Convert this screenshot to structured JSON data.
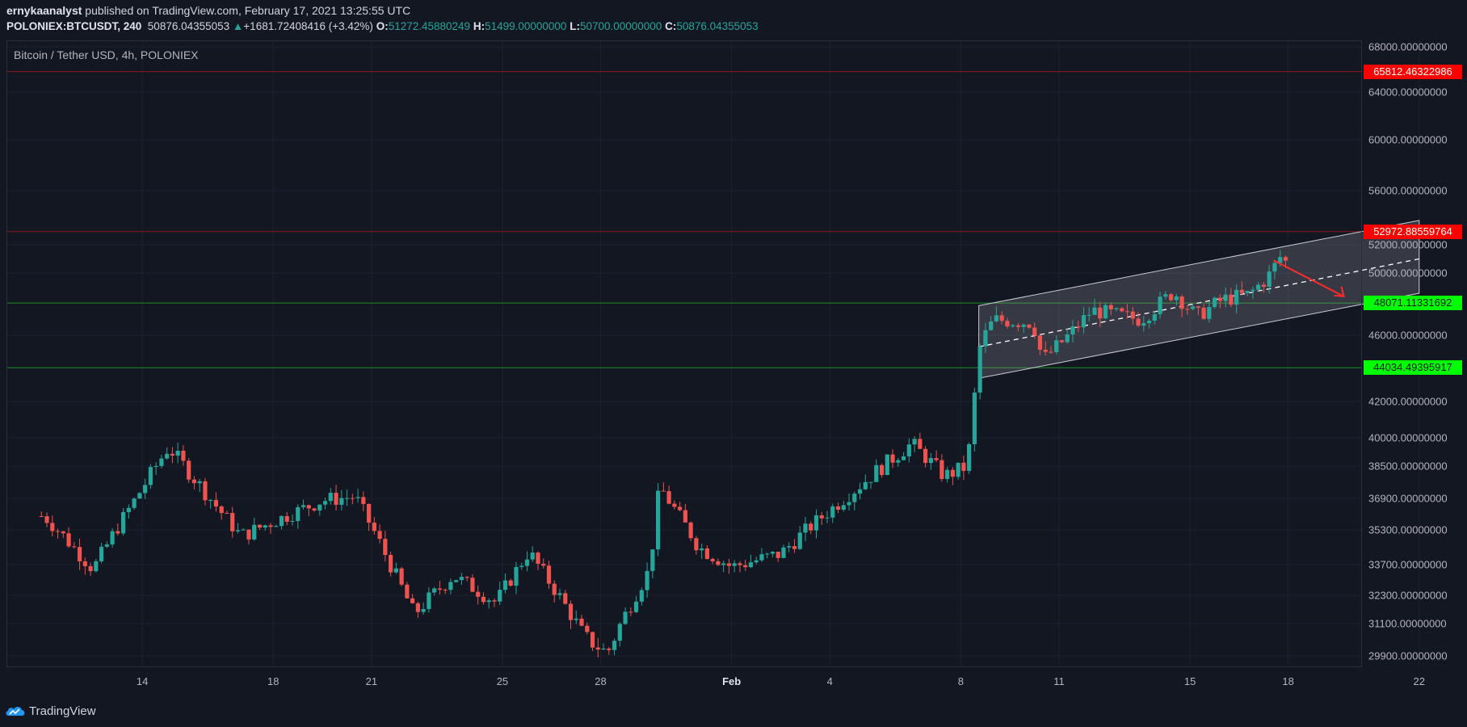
{
  "header": {
    "author": "ernykaanalyst",
    "published_text": "published on TradingView.com, February 17, 2021 13:25:55 UTC",
    "symbol": "POLONIEX:BTCUSDT, 240",
    "last": "50876.04355053",
    "change": "+1681.72408416 (+3.42%)",
    "o_label": "O:",
    "o_value": "51272.45880249",
    "h_label": "H:",
    "h_value": "51499.00000000",
    "l_label": "L:",
    "l_value": "50700.00000000",
    "c_label": "C:",
    "c_value": "50876.04355053",
    "up_arrow": "▲"
  },
  "chart_title": "Bitcoin / Tether USD, 4h, POLONIEX",
  "price_ticks": [
    {
      "label": "68000.00000000",
      "value": 68000
    },
    {
      "label": "64000.00000000",
      "value": 64000
    },
    {
      "label": "60000.00000000",
      "value": 60000
    },
    {
      "label": "56000.00000000",
      "value": 56000
    },
    {
      "label": "52000.00000000",
      "value": 52000
    },
    {
      "label": "50000.00000000",
      "value": 50000
    },
    {
      "label": "46000.00000000",
      "value": 46000
    },
    {
      "label": "42000.00000000",
      "value": 42000
    },
    {
      "label": "40000.00000000",
      "value": 40000
    },
    {
      "label": "38500.00000000",
      "value": 38500
    },
    {
      "label": "36900.00000000",
      "value": 36900
    },
    {
      "label": "35300.00000000",
      "value": 35300
    },
    {
      "label": "33700.00000000",
      "value": 33700
    },
    {
      "label": "32300.00000000",
      "value": 32300
    },
    {
      "label": "31100.00000000",
      "value": 31100
    },
    {
      "label": "29900.00000000",
      "value": 29900
    }
  ],
  "levels": [
    {
      "label": "65812.46322986",
      "value": 65812.46322986,
      "color": "#ff0000",
      "text_color": "#ffffff",
      "line": "#8b1a1a"
    },
    {
      "label": "52972.88559764",
      "value": 52972.88559764,
      "color": "#ff0000",
      "text_color": "#ffffff",
      "line": "#8b1a1a"
    },
    {
      "label": "48071.11331692",
      "value": 48071.11331692,
      "color": "#00ff00",
      "text_color": "#131722",
      "line": "#1f8a2a"
    },
    {
      "label": "44034.49395917",
      "value": 44034.49395917,
      "color": "#00ff00",
      "text_color": "#131722",
      "line": "#1f8a2a"
    }
  ],
  "time_labels": [
    {
      "label": "14",
      "day": 14,
      "bold": false
    },
    {
      "label": "18",
      "day": 18,
      "bold": false
    },
    {
      "label": "21",
      "day": 21,
      "bold": false
    },
    {
      "label": "25",
      "day": 25,
      "bold": false
    },
    {
      "label": "28",
      "day": 28,
      "bold": false
    },
    {
      "label": "Feb",
      "day": 32,
      "bold": true
    },
    {
      "label": "4",
      "day": 35,
      "bold": false
    },
    {
      "label": "8",
      "day": 39,
      "bold": false
    },
    {
      "label": "11",
      "day": 42,
      "bold": false
    },
    {
      "label": "15",
      "day": 46,
      "bold": false
    },
    {
      "label": "18",
      "day": 49,
      "bold": false
    },
    {
      "label": "22",
      "day": 53,
      "bold": false
    }
  ],
  "footer": {
    "brand": "TradingView"
  },
  "colors": {
    "up": "#26a69a",
    "down": "#ef5350",
    "channel_fill": "rgba(180,180,190,0.22)",
    "channel_edge": "#c9ccd4",
    "arrow": "#ff2b2b"
  },
  "chart_data": {
    "type": "candlestick",
    "timeframe": "4h",
    "ylim": [
      29000,
      69000
    ],
    "key_points": [
      {
        "day": 11.0,
        "close": 36000
      },
      {
        "day": 12.5,
        "close": 33500
      },
      {
        "day": 14.8,
        "close": 39500
      },
      {
        "day": 17.0,
        "close": 35000
      },
      {
        "day": 19.5,
        "close": 36800
      },
      {
        "day": 20.5,
        "close": 37000
      },
      {
        "day": 22.3,
        "close": 31500
      },
      {
        "day": 23.5,
        "close": 33200
      },
      {
        "day": 24.8,
        "close": 32000
      },
      {
        "day": 25.8,
        "close": 34300
      },
      {
        "day": 27.5,
        "close": 30600
      },
      {
        "day": 28.2,
        "close": 30000
      },
      {
        "day": 29.5,
        "close": 33500
      },
      {
        "day": 29.8,
        "close": 37500
      },
      {
        "day": 31.0,
        "close": 34500
      },
      {
        "day": 32.0,
        "close": 33600
      },
      {
        "day": 33.5,
        "close": 34200
      },
      {
        "day": 35.5,
        "close": 37000
      },
      {
        "day": 37.5,
        "close": 39700
      },
      {
        "day": 38.5,
        "close": 38000
      },
      {
        "day": 39.2,
        "close": 38500
      },
      {
        "day": 39.6,
        "close": 45500
      },
      {
        "day": 40.0,
        "close": 47000
      },
      {
        "day": 41.2,
        "close": 46800
      },
      {
        "day": 41.5,
        "close": 44500
      },
      {
        "day": 42.3,
        "close": 46000
      },
      {
        "day": 43.0,
        "close": 47600
      },
      {
        "day": 44.5,
        "close": 47000
      },
      {
        "day": 45.5,
        "close": 48800
      },
      {
        "day": 46.2,
        "close": 47200
      },
      {
        "day": 47.0,
        "close": 48300
      },
      {
        "day": 47.8,
        "close": 48600
      },
      {
        "day": 48.4,
        "close": 49800
      },
      {
        "day": 48.8,
        "close": 51300
      },
      {
        "day": 49.0,
        "close": 50876
      }
    ]
  }
}
